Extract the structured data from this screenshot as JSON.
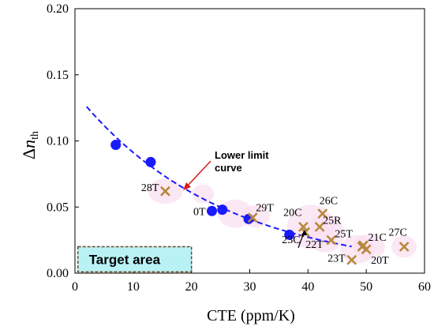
{
  "chart_data": {
    "type": "scatter",
    "xlabel": "CTE (ppm/K)",
    "ylabel_main": "Δ",
    "ylabel_italic": "n",
    "ylabel_sub": "th",
    "xlim": [
      0,
      60
    ],
    "ylim": [
      0,
      0.2
    ],
    "xticks": [
      "0",
      "10",
      "20",
      "30",
      "40",
      "50",
      "60"
    ],
    "yticks": [
      "0.00",
      "0.05",
      "0.10",
      "0.15",
      "0.20"
    ],
    "grid": false,
    "series": [
      {
        "marker": "circle",
        "color": "#1a1aff",
        "points": [
          {
            "x": 7.0,
            "y": 0.097,
            "label": ""
          },
          {
            "x": 13.0,
            "y": 0.084,
            "label": ""
          },
          {
            "x": 23.5,
            "y": 0.047,
            "label": "0T"
          },
          {
            "x": 25.3,
            "y": 0.048,
            "label": ""
          },
          {
            "x": 29.8,
            "y": 0.041,
            "label": ""
          },
          {
            "x": 36.8,
            "y": 0.029,
            "label": ""
          }
        ]
      },
      {
        "marker": "x",
        "color": "#b8883a",
        "points": [
          {
            "x": 15.5,
            "y": 0.062,
            "label": "28T"
          },
          {
            "x": 30.5,
            "y": 0.042,
            "label": "29T"
          },
          {
            "x": 39.2,
            "y": 0.035,
            "label": "20C"
          },
          {
            "x": 39.5,
            "y": 0.031,
            "label": "23C"
          },
          {
            "x": 42.5,
            "y": 0.045,
            "label": "26C"
          },
          {
            "x": 42.0,
            "y": 0.035,
            "label": "25R"
          },
          {
            "x": 44.0,
            "y": 0.025,
            "label": "22T"
          },
          {
            "x": 47.5,
            "y": 0.01,
            "label": "23T"
          },
          {
            "x": 49.3,
            "y": 0.02,
            "label": "25T"
          },
          {
            "x": 50.0,
            "y": 0.018,
            "label": "20T"
          },
          {
            "x": 56.5,
            "y": 0.02,
            "label": "27C"
          },
          {
            "x": 49.5,
            "y": 0.021,
            "label": "21C"
          }
        ]
      }
    ],
    "curve": {
      "color": "#1a1aff",
      "style": "dashed",
      "a": 0.1365,
      "b": 0.0403,
      "x_start": 2.0,
      "x_end": 47.5
    },
    "annotation_text_line1": "Lower limit",
    "annotation_text_line2": "curve",
    "target_label": "Target area",
    "target_x": [
      0.5,
      20
    ],
    "target_y": [
      0.001,
      0.02
    ]
  }
}
